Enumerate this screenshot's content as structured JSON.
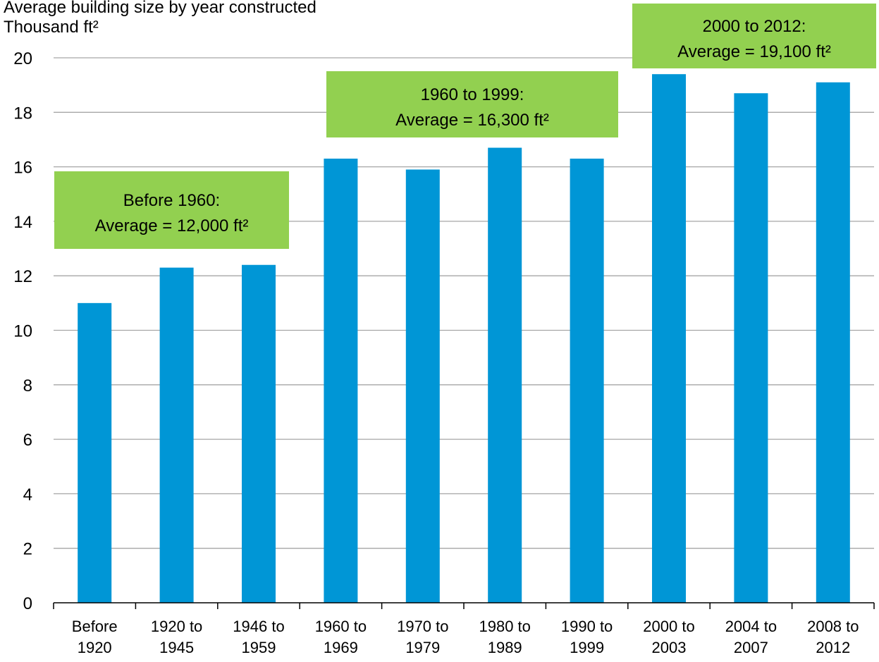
{
  "chart_data": {
    "type": "bar",
    "title": "Average building size by year constructed",
    "subtitle": "Thousand ft²",
    "categories": [
      [
        "Before",
        "1920"
      ],
      [
        "1920 to",
        "1945"
      ],
      [
        "1946 to",
        "1959"
      ],
      [
        "1960 to",
        "1969"
      ],
      [
        "1970 to",
        "1979"
      ],
      [
        "1980 to",
        "1989"
      ],
      [
        "1990 to",
        "1999"
      ],
      [
        "2000 to",
        "2003"
      ],
      [
        "2004 to",
        "2007"
      ],
      [
        "2008 to",
        "2012"
      ]
    ],
    "values": [
      11.0,
      12.3,
      12.4,
      16.3,
      15.9,
      16.7,
      16.3,
      19.4,
      18.7,
      19.1
    ],
    "color": "#0096d6",
    "ylim": [
      0,
      20
    ],
    "yticks": [
      0,
      2,
      4,
      6,
      8,
      10,
      12,
      14,
      16,
      18,
      20
    ],
    "grid": true,
    "annotations": [
      {
        "lines": [
          "Before 1960:",
          "Average = 12,000 ft²"
        ],
        "color": "#92d050"
      },
      {
        "lines": [
          "1960 to 1999:",
          "Average = 16,300 ft²"
        ],
        "color": "#92d050"
      },
      {
        "lines": [
          "2000 to 2012:",
          "Average = 19,100 ft²"
        ],
        "color": "#92d050"
      }
    ]
  }
}
